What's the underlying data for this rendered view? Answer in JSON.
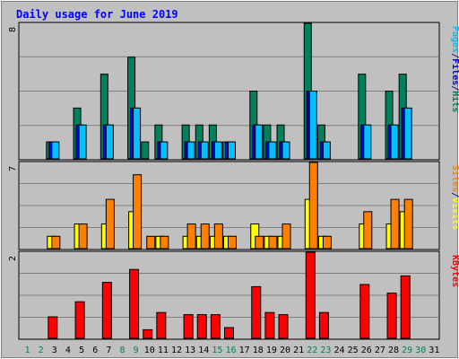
{
  "chart_data": {
    "type": "bar",
    "title": "Daily usage for June 2019",
    "days": [
      "1",
      "2",
      "3",
      "4",
      "5",
      "6",
      "7",
      "8",
      "9",
      "10",
      "11",
      "12",
      "13",
      "14",
      "15",
      "16",
      "17",
      "18",
      "19",
      "20",
      "21",
      "22",
      "23",
      "24",
      "25",
      "26",
      "27",
      "28",
      "29",
      "30",
      "31"
    ],
    "weekend_days": [
      "1",
      "2",
      "8",
      "9",
      "15",
      "16",
      "22",
      "23",
      "29",
      "30"
    ],
    "panels": [
      {
        "id": "hits",
        "max_label": "8",
        "ymax": 8,
        "legend": [
          {
            "label": "Pages",
            "color": "#00c0ff"
          },
          {
            "label": "/",
            "color": "#202080"
          },
          {
            "label": "Files",
            "color": "#0000ff"
          },
          {
            "label": "/",
            "color": "#202080"
          },
          {
            "label": "Hits",
            "color": "#00805c"
          }
        ],
        "series": [
          {
            "name": "Hits",
            "color": "#00805c",
            "values": [
              0,
              0,
              1,
              0,
              3,
              0,
              5,
              0,
              6,
              1,
              2,
              0,
              2,
              2,
              2,
              1,
              0,
              4,
              2,
              2,
              0,
              8,
              2,
              0,
              0,
              5,
              0,
              4,
              5,
              0,
              0
            ]
          },
          {
            "name": "Files",
            "color": "#0000ff",
            "values": [
              0,
              0,
              1,
              0,
              2,
              0,
              2,
              0,
              3,
              0,
              1,
              0,
              1,
              1,
              1,
              1,
              0,
              2,
              1,
              1,
              0,
              4,
              1,
              0,
              0,
              2,
              0,
              2,
              3,
              0,
              0
            ]
          },
          {
            "name": "Pages",
            "color": "#00c0ff",
            "values": [
              0,
              0,
              1,
              0,
              2,
              0,
              2,
              0,
              3,
              0,
              1,
              0,
              1,
              1,
              1,
              1,
              0,
              2,
              1,
              1,
              0,
              4,
              1,
              0,
              0,
              2,
              0,
              2,
              3,
              0,
              0
            ]
          }
        ]
      },
      {
        "id": "visits",
        "max_label": "7",
        "ymax": 7,
        "legend": [
          {
            "label": "Sites",
            "color": "#ff8000"
          },
          {
            "label": "/",
            "color": "#202080"
          },
          {
            "label": "Visits",
            "color": "#ffff00"
          }
        ],
        "series": [
          {
            "name": "Visits",
            "color": "#ffff00",
            "values": [
              0,
              0,
              1,
              0,
              2,
              0,
              2,
              0,
              3,
              0,
              1,
              0,
              1,
              1,
              1,
              1,
              0,
              2,
              1,
              1,
              0,
              4,
              1,
              0,
              0,
              2,
              0,
              2,
              3,
              0,
              0
            ]
          },
          {
            "name": "Sites",
            "color": "#ff8000",
            "values": [
              0,
              0,
              1,
              0,
              2,
              0,
              4,
              0,
              6,
              1,
              1,
              0,
              2,
              2,
              2,
              1,
              0,
              1,
              1,
              2,
              0,
              7,
              1,
              0,
              0,
              3,
              0,
              4,
              4,
              0,
              0
            ]
          }
        ]
      },
      {
        "id": "kbytes",
        "max_label": "2",
        "ymax": 2,
        "legend": [
          {
            "label": "KBytes",
            "color": "#ff0000"
          }
        ],
        "series": [
          {
            "name": "KBytes",
            "color": "#ff0000",
            "values": [
              0,
              0,
              0.5,
              0,
              0.85,
              0,
              1.3,
              0,
              1.6,
              0.2,
              0.6,
              0,
              0.55,
              0.55,
              0.55,
              0.25,
              0,
              1.2,
              0.6,
              0.55,
              0,
              2.0,
              0.6,
              0,
              0,
              1.25,
              0,
              1.05,
              1.45,
              0,
              0
            ]
          }
        ]
      }
    ]
  }
}
